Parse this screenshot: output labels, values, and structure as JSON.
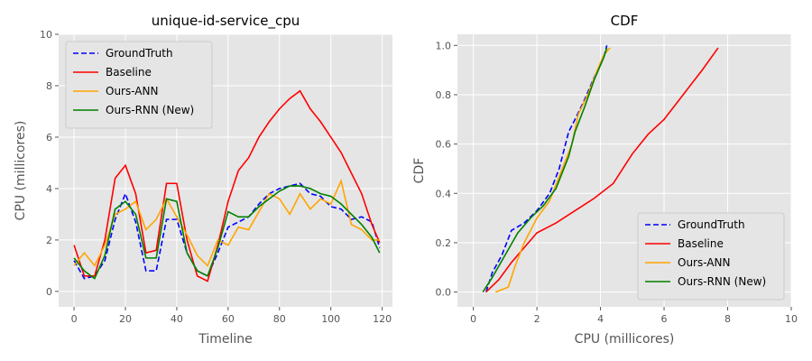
{
  "chart_data": [
    {
      "type": "line",
      "title": "unique-id-service_cpu",
      "x_label": "Timeline",
      "y_label": "CPU (millicores)",
      "x": [
        0,
        4,
        8,
        12,
        16,
        20,
        24,
        28,
        32,
        36,
        40,
        44,
        48,
        52,
        56,
        60,
        64,
        68,
        72,
        76,
        80,
        84,
        88,
        92,
        96,
        100,
        104,
        108,
        112,
        116,
        119
      ],
      "series": [
        {
          "name": "GroundTruth",
          "color": "#0000ff",
          "linestyle": "dashed",
          "values": [
            1.2,
            0.5,
            0.6,
            1.2,
            2.8,
            3.8,
            2.7,
            0.8,
            0.8,
            2.8,
            2.8,
            1.5,
            0.8,
            0.6,
            1.5,
            2.5,
            2.7,
            2.9,
            3.4,
            3.8,
            4.0,
            4.1,
            4.2,
            3.8,
            3.7,
            3.3,
            3.2,
            2.8,
            2.9,
            2.7,
            1.7
          ]
        },
        {
          "name": "Baseline",
          "color": "#ff0000",
          "linestyle": "solid",
          "values": [
            1.8,
            0.6,
            0.6,
            2.0,
            4.4,
            4.9,
            3.8,
            1.5,
            1.6,
            4.2,
            4.2,
            2.0,
            0.6,
            0.4,
            1.8,
            3.5,
            4.7,
            5.2,
            6.0,
            6.6,
            7.1,
            7.5,
            7.8,
            7.1,
            6.6,
            6.0,
            5.4,
            4.6,
            3.8,
            2.6,
            1.9
          ]
        },
        {
          "name": "Ours-ANN",
          "color": "#ffa500",
          "linestyle": "solid",
          "values": [
            1.0,
            1.5,
            1.0,
            1.8,
            3.0,
            3.2,
            3.5,
            2.4,
            2.8,
            3.6,
            2.9,
            2.2,
            1.4,
            1.0,
            2.0,
            1.8,
            2.5,
            2.4,
            3.1,
            3.8,
            3.6,
            3.0,
            3.8,
            3.2,
            3.6,
            3.4,
            4.3,
            2.6,
            2.4,
            2.0,
            2.0
          ]
        },
        {
          "name": "Ours-RNN (New)",
          "color": "#008000",
          "linestyle": "solid",
          "values": [
            1.3,
            0.8,
            0.5,
            1.4,
            3.2,
            3.5,
            3.0,
            1.3,
            1.3,
            3.6,
            3.5,
            1.5,
            0.8,
            0.6,
            1.7,
            3.1,
            2.9,
            2.9,
            3.3,
            3.6,
            3.9,
            4.1,
            4.1,
            4.0,
            3.8,
            3.7,
            3.4,
            3.0,
            2.6,
            2.1,
            1.5
          ]
        }
      ],
      "xlim": [
        -6,
        124
      ],
      "ylim": [
        -0.6,
        10
      ],
      "xticks": [
        0,
        20,
        40,
        60,
        80,
        100,
        120
      ],
      "yticks": [
        0,
        2,
        4,
        6,
        8,
        10
      ],
      "grid": true,
      "legend": "upper-left"
    },
    {
      "type": "line",
      "title": "CDF",
      "x_label": "CPU (millicores)",
      "y_label": "CDF",
      "series": [
        {
          "name": "GroundTruth",
          "color": "#0000ff",
          "linestyle": "dashed",
          "x": [
            0.4,
            0.6,
            0.9,
            1.2,
            1.6,
            2.0,
            2.4,
            2.7,
            3.0,
            3.2,
            3.5,
            3.8,
            4.1,
            4.2
          ],
          "values": [
            0,
            0.08,
            0.15,
            0.25,
            0.28,
            0.33,
            0.4,
            0.5,
            0.65,
            0.7,
            0.78,
            0.87,
            0.95,
            1.0
          ]
        },
        {
          "name": "Baseline",
          "color": "#ff0000",
          "linestyle": "solid",
          "x": [
            0.4,
            0.8,
            1.2,
            1.6,
            2.0,
            2.6,
            3.2,
            3.8,
            4.4,
            5.0,
            5.5,
            6.0,
            6.6,
            7.2,
            7.7
          ],
          "values": [
            0,
            0.05,
            0.12,
            0.18,
            0.24,
            0.28,
            0.33,
            0.38,
            0.44,
            0.56,
            0.64,
            0.7,
            0.8,
            0.9,
            0.99
          ]
        },
        {
          "name": "Ours-ANN",
          "color": "#ffa500",
          "linestyle": "solid",
          "x": [
            0.7,
            1.1,
            1.3,
            1.6,
            2.0,
            2.4,
            2.8,
            3.1,
            3.3,
            3.6,
            3.9,
            4.1,
            4.3
          ],
          "values": [
            0,
            0.02,
            0.1,
            0.2,
            0.3,
            0.37,
            0.5,
            0.6,
            0.72,
            0.8,
            0.9,
            0.96,
            0.99
          ]
        },
        {
          "name": "Ours-RNN (New)",
          "color": "#008000",
          "linestyle": "solid",
          "x": [
            0.3,
            0.6,
            1.0,
            1.4,
            1.8,
            2.2,
            2.6,
            3.0,
            3.2,
            3.5,
            3.8,
            4.1,
            4.2
          ],
          "values": [
            0,
            0.06,
            0.15,
            0.24,
            0.3,
            0.35,
            0.42,
            0.55,
            0.65,
            0.75,
            0.86,
            0.95,
            0.99
          ]
        }
      ],
      "xlim": [
        -0.5,
        10
      ],
      "ylim": [
        -0.06,
        1.045
      ],
      "xticks": [
        0,
        2,
        4,
        6,
        8,
        10
      ],
      "yticks": [
        {
          "value": 0,
          "label": "0.0"
        },
        0.2,
        0.4,
        0.6,
        0.8,
        {
          "value": 1,
          "label": "1.0"
        }
      ],
      "grid": true,
      "legend": "lower-right"
    }
  ]
}
